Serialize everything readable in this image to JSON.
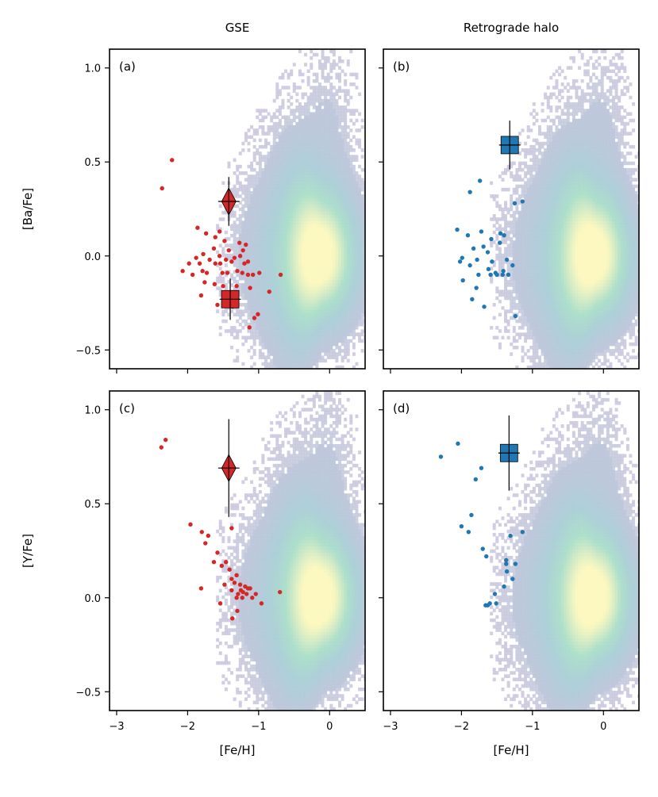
{
  "chart_data": {
    "type": "scatter",
    "column_titles": [
      "GSE",
      "Retrograde halo"
    ],
    "xlabel": "[Fe/H]",
    "xlim": [
      -3.1,
      0.5
    ],
    "xticks": [
      -3,
      -2,
      -1,
      0
    ],
    "xtick_labels": [
      "−3",
      "−2",
      "−1",
      "0"
    ],
    "yticks": [
      -0.5,
      0.0,
      0.5,
      1.0
    ],
    "ytick_labels": [
      "−0.5",
      "0.0",
      "0.5",
      "1.0"
    ],
    "background": "2D density histogram of field stars (purple → teal → pale yellow), peaked near [Fe/H] ≈ -0.1, [X/Fe] ≈ 0",
    "colors": {
      "gse": "#d62728",
      "retro": "#1f77b4",
      "errorbar": "#000000"
    },
    "panels": [
      {
        "tag": "(a)",
        "ylabel": "[Ba/Fe]",
        "ylim": [
          -0.6,
          1.1
        ],
        "color": "#d62728",
        "points": [
          [
            -2.22,
            0.51
          ],
          [
            -2.36,
            0.36
          ],
          [
            -1.86,
            0.15
          ],
          [
            -1.55,
            0.13
          ],
          [
            -1.74,
            0.12
          ],
          [
            -1.61,
            0.1
          ],
          [
            -1.48,
            0.08
          ],
          [
            -1.27,
            0.07
          ],
          [
            -1.18,
            0.06
          ],
          [
            -1.63,
            0.04
          ],
          [
            -1.42,
            0.03
          ],
          [
            -1.22,
            0.03
          ],
          [
            -1.78,
            0.01
          ],
          [
            -1.55,
            0.0
          ],
          [
            -1.88,
            -0.01
          ],
          [
            -1.69,
            -0.02
          ],
          [
            -1.46,
            -0.02
          ],
          [
            -1.34,
            -0.01
          ],
          [
            -1.26,
            0.0
          ],
          [
            -1.15,
            -0.03
          ],
          [
            -1.98,
            -0.04
          ],
          [
            -1.83,
            -0.04
          ],
          [
            -1.61,
            -0.04
          ],
          [
            -1.54,
            -0.04
          ],
          [
            -1.38,
            -0.03
          ],
          [
            -1.2,
            -0.04
          ],
          [
            -2.07,
            -0.08
          ],
          [
            -1.93,
            -0.1
          ],
          [
            -1.79,
            -0.08
          ],
          [
            -1.73,
            -0.09
          ],
          [
            -1.51,
            -0.09
          ],
          [
            -1.44,
            -0.09
          ],
          [
            -1.3,
            -0.08
          ],
          [
            -1.23,
            -0.09
          ],
          [
            -1.15,
            -0.1
          ],
          [
            -1.08,
            -0.1
          ],
          [
            -0.99,
            -0.09
          ],
          [
            -0.69,
            -0.1
          ],
          [
            -1.76,
            -0.14
          ],
          [
            -1.62,
            -0.15
          ],
          [
            -1.31,
            -0.16
          ],
          [
            -1.5,
            -0.16
          ],
          [
            -1.12,
            -0.17
          ],
          [
            -0.85,
            -0.19
          ],
          [
            -1.81,
            -0.21
          ],
          [
            -1.37,
            -0.27
          ],
          [
            -1.06,
            -0.33
          ],
          [
            -1.01,
            -0.31
          ],
          [
            -1.13,
            -0.38
          ],
          [
            -1.58,
            -0.26
          ]
        ],
        "markers": [
          {
            "shape": "diamond",
            "x": -1.42,
            "y": 0.29,
            "xerr": 0.15,
            "yerr": 0.13
          },
          {
            "shape": "square",
            "x": -1.4,
            "y": -0.23,
            "xerr": 0.15,
            "yerr": 0.11
          }
        ]
      },
      {
        "tag": "(b)",
        "ylabel": "",
        "ylim": [
          -0.6,
          1.1
        ],
        "color": "#1f77b4",
        "points": [
          [
            -1.74,
            0.4
          ],
          [
            -1.88,
            0.34
          ],
          [
            -1.14,
            0.29
          ],
          [
            -1.25,
            0.28
          ],
          [
            -2.06,
            0.14
          ],
          [
            -1.72,
            0.13
          ],
          [
            -1.91,
            0.11
          ],
          [
            -1.45,
            0.12
          ],
          [
            -1.4,
            0.11
          ],
          [
            -1.58,
            0.09
          ],
          [
            -1.46,
            0.07
          ],
          [
            -1.69,
            0.05
          ],
          [
            -1.83,
            0.04
          ],
          [
            -1.63,
            0.02
          ],
          [
            -1.99,
            -0.01
          ],
          [
            -1.78,
            -0.02
          ],
          [
            -1.57,
            -0.03
          ],
          [
            -1.36,
            -0.02
          ],
          [
            -2.02,
            -0.03
          ],
          [
            -1.88,
            -0.05
          ],
          [
            -1.62,
            -0.07
          ],
          [
            -1.28,
            -0.05
          ],
          [
            -1.41,
            -0.08
          ],
          [
            -1.52,
            -0.09
          ],
          [
            -1.76,
            -0.1
          ],
          [
            -1.59,
            -0.1
          ],
          [
            -1.5,
            -0.1
          ],
          [
            -1.42,
            -0.1
          ],
          [
            -1.34,
            -0.1
          ],
          [
            -1.98,
            -0.13
          ],
          [
            -1.79,
            -0.17
          ],
          [
            -1.85,
            -0.23
          ],
          [
            -1.68,
            -0.27
          ],
          [
            -1.24,
            -0.32
          ]
        ],
        "markers": [
          {
            "shape": "square",
            "x": -1.32,
            "y": 0.59,
            "xerr": 0.15,
            "yerr": 0.13
          }
        ]
      },
      {
        "tag": "(c)",
        "ylabel": "[Y/Fe]",
        "ylim": [
          -0.6,
          1.1
        ],
        "color": "#d62728",
        "points": [
          [
            -2.31,
            0.84
          ],
          [
            -2.37,
            0.8
          ],
          [
            -1.96,
            0.39
          ],
          [
            -1.38,
            0.37
          ],
          [
            -1.8,
            0.35
          ],
          [
            -1.71,
            0.33
          ],
          [
            -1.75,
            0.29
          ],
          [
            -1.58,
            0.24
          ],
          [
            -1.46,
            0.19
          ],
          [
            -1.63,
            0.19
          ],
          [
            -1.52,
            0.17
          ],
          [
            -1.41,
            0.15
          ],
          [
            -1.31,
            0.12
          ],
          [
            -1.38,
            0.1
          ],
          [
            -1.34,
            0.08
          ],
          [
            -1.48,
            0.07
          ],
          [
            -1.26,
            0.07
          ],
          [
            -1.19,
            0.06
          ],
          [
            -1.15,
            0.05
          ],
          [
            -1.12,
            0.05
          ],
          [
            -1.38,
            0.04
          ],
          [
            -1.25,
            0.04
          ],
          [
            -1.22,
            0.03
          ],
          [
            -1.29,
            0.02
          ],
          [
            -1.17,
            0.02
          ],
          [
            -0.7,
            0.03
          ],
          [
            -1.04,
            0.02
          ],
          [
            -1.09,
            0.0
          ],
          [
            -1.23,
            0.0
          ],
          [
            -1.31,
            0.0
          ],
          [
            -1.81,
            0.05
          ],
          [
            -0.96,
            -0.03
          ],
          [
            -1.54,
            -0.03
          ],
          [
            -1.3,
            -0.07
          ],
          [
            -1.37,
            -0.11
          ]
        ],
        "markers": [
          {
            "shape": "diamond",
            "x": -1.42,
            "y": 0.69,
            "xerr": 0.15,
            "yerr": 0.26
          }
        ]
      },
      {
        "tag": "(d)",
        "ylabel": "",
        "ylim": [
          -0.6,
          1.1
        ],
        "color": "#1f77b4",
        "points": [
          [
            -2.05,
            0.82
          ],
          [
            -2.29,
            0.75
          ],
          [
            -1.72,
            0.69
          ],
          [
            -1.8,
            0.63
          ],
          [
            -1.86,
            0.44
          ],
          [
            -2.0,
            0.38
          ],
          [
            -1.14,
            0.35
          ],
          [
            -1.9,
            0.35
          ],
          [
            -1.31,
            0.33
          ],
          [
            -1.7,
            0.26
          ],
          [
            -1.65,
            0.22
          ],
          [
            -1.37,
            0.2
          ],
          [
            -1.37,
            0.18
          ],
          [
            -1.24,
            0.18
          ],
          [
            -1.36,
            0.14
          ],
          [
            -1.28,
            0.1
          ],
          [
            -1.4,
            0.06
          ],
          [
            -1.53,
            0.02
          ],
          [
            -1.6,
            -0.03
          ],
          [
            -1.66,
            -0.04
          ],
          [
            -1.63,
            -0.04
          ],
          [
            -1.51,
            -0.03
          ]
        ],
        "markers": [
          {
            "shape": "square",
            "x": -1.33,
            "y": 0.77,
            "xerr": 0.15,
            "yerr": 0.2
          }
        ]
      }
    ]
  }
}
